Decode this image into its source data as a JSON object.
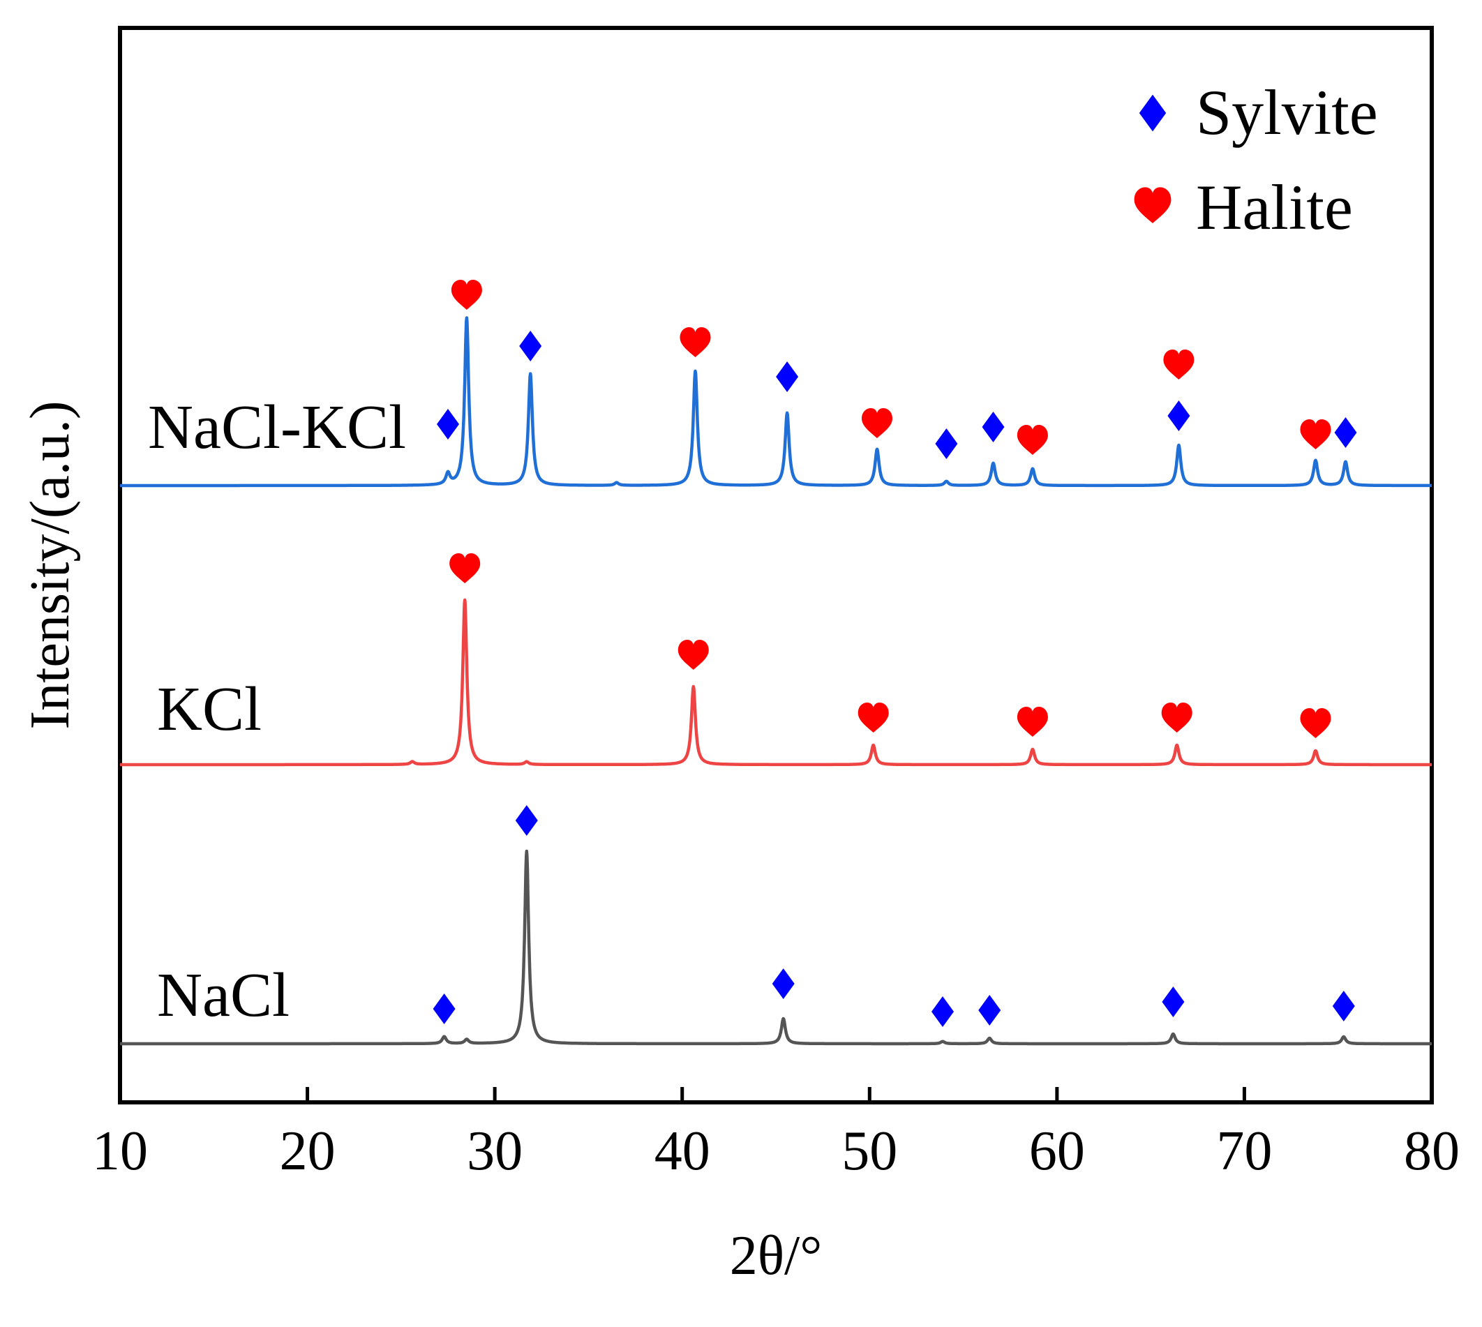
{
  "chart_data": {
    "type": "line",
    "title": "",
    "xlabel": "2θ/°",
    "ylabel": "Intensity/(a.u.)",
    "xlim": [
      10,
      80
    ],
    "x_ticks": [
      10,
      20,
      30,
      40,
      50,
      60,
      70,
      80
    ],
    "y_ticks_shown": false,
    "legend": {
      "position": "top-right",
      "entries": [
        {
          "label": "Sylvite",
          "marker": "diamond-icon",
          "color": "#0000ff"
        },
        {
          "label": "Halite",
          "marker": "heart-icon",
          "color": "#ff0000"
        }
      ]
    },
    "series": [
      {
        "name": "NaCl-KCl",
        "color": "#1f6fd6",
        "baseline_offset": 200,
        "peaks": [
          {
            "x": 27.5,
            "intensity": 4
          },
          {
            "x": 28.5,
            "intensity": 60
          },
          {
            "x": 31.9,
            "intensity": 40
          },
          {
            "x": 36.5,
            "intensity": 1
          },
          {
            "x": 40.7,
            "intensity": 41
          },
          {
            "x": 45.6,
            "intensity": 26
          },
          {
            "x": 50.4,
            "intensity": 13
          },
          {
            "x": 54.1,
            "intensity": 1.5
          },
          {
            "x": 56.6,
            "intensity": 8
          },
          {
            "x": 58.7,
            "intensity": 6
          },
          {
            "x": 66.5,
            "intensity": 14.5
          },
          {
            "x": 73.8,
            "intensity": 9
          },
          {
            "x": 75.4,
            "intensity": 8.5
          }
        ],
        "markers": [
          {
            "x": 27.5,
            "type": "sylvite",
            "height": 22
          },
          {
            "x": 28.5,
            "type": "halite",
            "height": 68
          },
          {
            "x": 31.9,
            "type": "sylvite",
            "height": 50
          },
          {
            "x": 40.7,
            "type": "halite",
            "height": 51
          },
          {
            "x": 45.6,
            "type": "sylvite",
            "height": 39
          },
          {
            "x": 50.4,
            "type": "halite",
            "height": 22
          },
          {
            "x": 54.1,
            "type": "sylvite",
            "height": 15
          },
          {
            "x": 56.6,
            "type": "sylvite",
            "height": 21
          },
          {
            "x": 58.7,
            "type": "halite",
            "height": 16
          },
          {
            "x": 66.5,
            "type": "halite",
            "height": 43
          },
          {
            "x": 66.5,
            "type": "sylvite",
            "height": 25
          },
          {
            "x": 73.8,
            "type": "halite",
            "height": 18
          },
          {
            "x": 75.4,
            "type": "sylvite",
            "height": 19
          }
        ]
      },
      {
        "name": "KCl",
        "color": "#ee4444",
        "baseline_offset": 100,
        "peaks": [
          {
            "x": 25.6,
            "intensity": 1
          },
          {
            "x": 28.4,
            "intensity": 59
          },
          {
            "x": 31.7,
            "intensity": 1
          },
          {
            "x": 40.6,
            "intensity": 28
          },
          {
            "x": 50.2,
            "intensity": 7
          },
          {
            "x": 58.7,
            "intensity": 5.5
          },
          {
            "x": 66.4,
            "intensity": 7
          },
          {
            "x": 73.8,
            "intensity": 5
          }
        ],
        "markers": [
          {
            "x": 28.4,
            "type": "halite",
            "height": 70
          },
          {
            "x": 40.6,
            "type": "halite",
            "height": 39
          },
          {
            "x": 50.2,
            "type": "halite",
            "height": 16.5
          },
          {
            "x": 58.7,
            "type": "halite",
            "height": 15
          },
          {
            "x": 66.4,
            "type": "halite",
            "height": 16.5
          },
          {
            "x": 73.8,
            "type": "halite",
            "height": 14.5
          }
        ]
      },
      {
        "name": "NaCl",
        "color": "#555555",
        "baseline_offset": 0,
        "peaks": [
          {
            "x": 27.3,
            "intensity": 2.5
          },
          {
            "x": 28.5,
            "intensity": 1.5
          },
          {
            "x": 31.7,
            "intensity": 69
          },
          {
            "x": 45.4,
            "intensity": 9
          },
          {
            "x": 53.9,
            "intensity": 0.8
          },
          {
            "x": 56.4,
            "intensity": 2
          },
          {
            "x": 66.2,
            "intensity": 3.5
          },
          {
            "x": 75.3,
            "intensity": 2.5
          }
        ],
        "markers": [
          {
            "x": 27.3,
            "type": "sylvite",
            "height": 12.5
          },
          {
            "x": 31.7,
            "type": "sylvite",
            "height": 80
          },
          {
            "x": 45.4,
            "type": "sylvite",
            "height": 21.5
          },
          {
            "x": 53.9,
            "type": "sylvite",
            "height": 11.5
          },
          {
            "x": 56.4,
            "type": "sylvite",
            "height": 12
          },
          {
            "x": 66.2,
            "type": "sylvite",
            "height": 15
          },
          {
            "x": 75.3,
            "type": "sylvite",
            "height": 13.5
          }
        ]
      }
    ]
  }
}
